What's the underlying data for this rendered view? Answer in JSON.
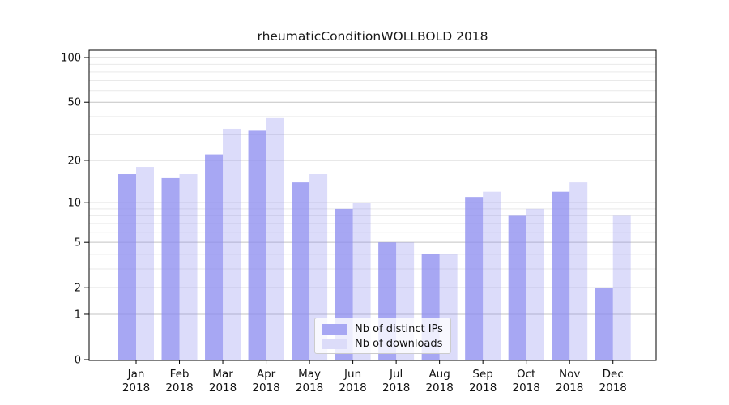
{
  "chart_data": {
    "type": "bar",
    "title": "rheumaticConditionWOLLBOLD 2018",
    "categories": [
      "Jan",
      "Feb",
      "Mar",
      "Apr",
      "May",
      "Jun",
      "Jul",
      "Aug",
      "Sep",
      "Oct",
      "Nov",
      "Dec"
    ],
    "x_year": "2018",
    "series": [
      {
        "name": "Nb of distinct IPs",
        "values": [
          16,
          15,
          22,
          32,
          14,
          9,
          5,
          4,
          11,
          8,
          12,
          2
        ],
        "color": "#8a8aef",
        "opacity": 0.75,
        "apparent_color": "#a7a7f3"
      },
      {
        "name": "Nb of downloads",
        "values": [
          18,
          16,
          33,
          39,
          16,
          10,
          5,
          4,
          12,
          9,
          14,
          8
        ],
        "color": "#8a8aef",
        "opacity": 0.3,
        "apparent_color": "#dcdcf9"
      }
    ],
    "y_axis": {
      "scale": "log1p",
      "ticks": [
        0,
        1,
        2,
        5,
        10,
        20,
        50,
        100
      ],
      "minor_gridlines": [
        3,
        4,
        6,
        7,
        8,
        9,
        30,
        40,
        60,
        70,
        80,
        90
      ],
      "range_top": 100
    },
    "legend": {
      "position": "bottom-center",
      "entries": [
        "Nb of distinct IPs",
        "Nb of downloads"
      ]
    },
    "style": {
      "background": "#ffffff",
      "major_grid_color": "#c3c3c3",
      "minor_grid_color": "#e9e9e9",
      "spine_color": "#000000",
      "text_color": "#111111"
    }
  }
}
